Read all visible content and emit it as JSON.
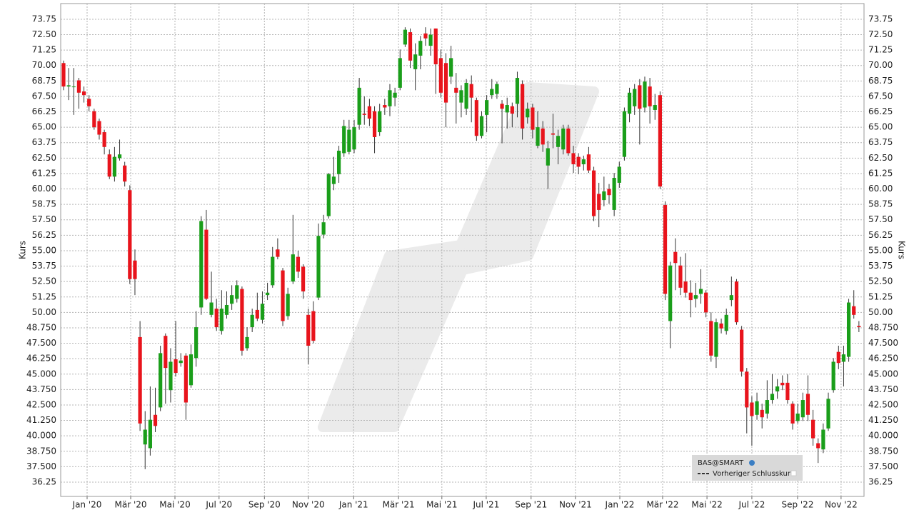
{
  "chart_data": {
    "type": "candlestick",
    "ylabel": "Kurs",
    "up_color": "#1a9e1a",
    "down_color": "#e8141c",
    "wick_color": "#333333",
    "grid": true,
    "ylim": [
      35.09,
      75.02
    ],
    "yticks": [
      36.25,
      {
        "value": 37.5,
        "label": "37.500"
      },
      {
        "value": 38.75,
        "label": "38.750"
      },
      {
        "value": 40,
        "label": "40.000"
      },
      {
        "value": 41.25,
        "label": "41.250"
      },
      {
        "value": 42.5,
        "label": "42.500"
      },
      {
        "value": 43.75,
        "label": "43.750"
      },
      {
        "value": 45,
        "label": "45.000"
      },
      {
        "value": 46.25,
        "label": "46.250"
      },
      {
        "value": 47.5,
        "label": "47.500"
      },
      {
        "value": 48.75,
        "label": "48.750"
      },
      {
        "value": 50,
        "label": "50.00"
      },
      51.25,
      {
        "value": 52.5,
        "label": "52.50"
      },
      53.75,
      {
        "value": 55,
        "label": "55.00"
      },
      56.25,
      {
        "value": 57.5,
        "label": "57.50"
      },
      58.75,
      {
        "value": 60,
        "label": "60.00"
      },
      61.25,
      {
        "value": 62.5,
        "label": "62.50"
      },
      63.75,
      {
        "value": 65,
        "label": "65.00"
      },
      66.25,
      {
        "value": 67.5,
        "label": "67.50"
      },
      68.75,
      {
        "value": 70,
        "label": "70.00"
      },
      71.25,
      {
        "value": 72.5,
        "label": "72.50"
      },
      73.75
    ],
    "xlim": [
      -0.56,
      157
    ],
    "xticks": [
      {
        "value": 4.62,
        "label": "Jan '20"
      },
      {
        "value": 13.17,
        "label": "Mär '20"
      },
      {
        "value": 21.85,
        "label": "Mai '20"
      },
      {
        "value": 30.5,
        "label": "Jul '20"
      },
      {
        "value": 39.4,
        "label": "Sep '20"
      },
      {
        "value": 48.0,
        "label": "Nov '20"
      },
      {
        "value": 56.9,
        "label": "Jan '21"
      },
      {
        "value": 65.7,
        "label": "Mär '21"
      },
      {
        "value": 74.2,
        "label": "Mai '21"
      },
      {
        "value": 82.9,
        "label": "Jul '21"
      },
      {
        "value": 91.7,
        "label": "Sep '21"
      },
      {
        "value": 100.4,
        "label": "Nov '21"
      },
      {
        "value": 109.1,
        "label": "Jan '22"
      },
      {
        "value": 117.5,
        "label": "Mär '22"
      },
      {
        "value": 126.2,
        "label": "Mai '22"
      },
      {
        "value": 135.0,
        "label": "Jul '22"
      },
      {
        "value": 143.97,
        "label": "Sep '22"
      },
      {
        "value": 152.5,
        "label": "Nov '22"
      }
    ],
    "series": [
      {
        "name": "BAS@SMART",
        "open": [
          70.2,
          68.3,
          68.3,
          68.8,
          67.9,
          67.3,
          66.3,
          65.5,
          64.6,
          62.8,
          61.0,
          62.5,
          61.9,
          59.9,
          54.2,
          48.0,
          39.3,
          39.0,
          41.7,
          42.3,
          48.1,
          43.7,
          46.2,
          45.9,
          46.5,
          44.1,
          46.3,
          50.4,
          56.7,
          49.8,
          50.3,
          48.5,
          49.8,
          50.7,
          51.1,
          51.9,
          47.1,
          48.8,
          50.2,
          49.4,
          51.4,
          52.2,
          55.1,
          53.4,
          49.7,
          52.5,
          54.5,
          53.7,
          49.8,
          50.1,
          51.2,
          56.3,
          57.8,
          60.4,
          61.2,
          62.9,
          63.0,
          63.2,
          65.2,
          66.1,
          66.7,
          66.3,
          64.6,
          66.8,
          66.7,
          67.4,
          68.2,
          71.7,
          72.7,
          69.7,
          70.8,
          72.6,
          71.6,
          73.0,
          70.6,
          70.2,
          69.1,
          68.2,
          67.0,
          66.5,
          68.5,
          67.2,
          64.3,
          66.0,
          67.6,
          67.7,
          66.9,
          66.2,
          66.7,
          66.9,
          68.5,
          65.8,
          66.6,
          63.5,
          64.9,
          61.9,
          64.5,
          63.4,
          63.2,
          64.9,
          62.9,
          62.6,
          62.0,
          62.8,
          61.5,
          59.6,
          59.1,
          60.0,
          58.3,
          60.5,
          62.6,
          66.1,
          66.7,
          68.4,
          66.6,
          68.3,
          66.4,
          67.6,
          58.7,
          49.3,
          54.9,
          53.8,
          52.5,
          51.6,
          51.1,
          51.5,
          51.6,
          49.3,
          46.4,
          49.1,
          48.5,
          51.0,
          52.5,
          48.6,
          45.2,
          42.7,
          41.7,
          42.1,
          41.8,
          42.9,
          43.6,
          44.3,
          44.3,
          42.6,
          41.2,
          41.5,
          43.4,
          41.3,
          39.4,
          38.9,
          40.6,
          43.7,
          46.8,
          46.0,
          46.4,
          50.5,
          48.9
        ],
        "high": [
          70.4,
          69.8,
          69.8,
          69.0,
          68.3,
          67.6,
          66.5,
          65.7,
          64.8,
          63.2,
          63.4,
          64.0,
          62.2,
          60.3,
          55.1,
          49.3,
          42.0,
          44.0,
          43.9,
          47.3,
          48.3,
          47.1,
          49.3,
          46.7,
          46.7,
          47.4,
          50.1,
          57.8,
          58.3,
          53.3,
          51.1,
          51.8,
          51.7,
          52.2,
          52.6,
          52.1,
          48.8,
          50.3,
          51.6,
          51.7,
          52.4,
          55.3,
          56.0,
          53.6,
          52.0,
          57.9,
          55.0,
          53.9,
          50.3,
          50.9,
          57.2,
          57.9,
          61.3,
          62.6,
          63.5,
          65.6,
          65.6,
          65.6,
          69.0,
          67.5,
          67.3,
          66.7,
          66.9,
          67.3,
          68.5,
          68.2,
          71.3,
          73.1,
          73.0,
          71.8,
          72.4,
          73.1,
          73.0,
          73.0,
          71.3,
          71.0,
          71.6,
          69.4,
          68.4,
          68.9,
          69.2,
          67.4,
          66.3,
          67.6,
          68.9,
          68.7,
          67.2,
          67.4,
          67.0,
          69.5,
          68.8,
          67.0,
          66.9,
          66.3,
          65.5,
          63.9,
          66.1,
          64.8,
          65.2,
          65.2,
          63.5,
          62.9,
          62.7,
          63.4,
          61.8,
          60.5,
          61.0,
          60.4,
          61.3,
          62.2,
          66.6,
          68.2,
          68.5,
          68.9,
          69.1,
          69.0,
          67.7,
          67.9,
          59.0,
          54.1,
          56.0,
          54.5,
          54.8,
          52.6,
          52.4,
          53.5,
          51.8,
          50.0,
          49.5,
          49.5,
          50.3,
          52.9,
          52.7,
          48.9,
          45.5,
          43.2,
          43.5,
          42.6,
          44.5,
          45.0,
          44.6,
          44.9,
          45.0,
          42.8,
          42.6,
          43.5,
          44.9,
          42.1,
          39.8,
          41.0,
          43.5,
          46.3,
          47.3,
          47.3,
          51.1,
          51.8,
          49.3
        ],
        "low": [
          68.0,
          67.2,
          66.0,
          66.5,
          67.0,
          66.3,
          64.8,
          64.0,
          62.8,
          60.8,
          60.6,
          62.3,
          60.2,
          52.3,
          51.4,
          40.4,
          37.3,
          38.4,
          40.3,
          42.0,
          42.6,
          42.7,
          44.8,
          45.6,
          41.3,
          43.9,
          45.6,
          49.8,
          51.0,
          49.6,
          48.5,
          48.2,
          49.5,
          50.2,
          50.8,
          46.5,
          46.9,
          48.4,
          49.3,
          49.1,
          51.0,
          52.0,
          54.3,
          48.9,
          49.4,
          52.3,
          52.8,
          51.1,
          45.8,
          47.5,
          51.0,
          56.0,
          57.6,
          59.9,
          60.5,
          62.6,
          62.8,
          62.9,
          64.8,
          65.2,
          65.1,
          62.9,
          64.3,
          66.0,
          65.9,
          66.7,
          68.0,
          71.5,
          69.8,
          68.0,
          69.7,
          71.6,
          70.8,
          67.7,
          67.4,
          65.0,
          68.5,
          65.3,
          65.8,
          66.0,
          65.4,
          63.9,
          64.1,
          64.6,
          67.3,
          67.3,
          63.7,
          64.9,
          65.0,
          65.8,
          64.0,
          65.3,
          64.1,
          63.3,
          63.0,
          60.0,
          63.3,
          62.0,
          62.8,
          62.7,
          61.3,
          61.2,
          61.5,
          61.3,
          57.4,
          56.9,
          58.6,
          58.8,
          57.8,
          60.1,
          62.3,
          65.4,
          66.0,
          63.6,
          66.2,
          65.3,
          65.6,
          60.0,
          51.0,
          47.1,
          51.8,
          51.4,
          51.2,
          49.6,
          50.4,
          50.7,
          49.6,
          46.0,
          45.5,
          48.3,
          48.2,
          50.5,
          49.0,
          44.8,
          40.2,
          39.2,
          41.3,
          40.6,
          41.4,
          42.6,
          43.0,
          43.7,
          42.6,
          40.5,
          41.0,
          41.2,
          41.2,
          39.2,
          37.8,
          38.6,
          40.4,
          43.5,
          45.4,
          44.0,
          46.0,
          49.5,
          48.4
        ],
        "close": [
          68.3,
          68.4,
          68.3,
          67.8,
          67.6,
          66.7,
          65.0,
          64.4,
          63.4,
          61.0,
          62.6,
          62.8,
          60.6,
          52.7,
          52.7,
          41.0,
          40.5,
          41.3,
          40.8,
          46.7,
          45.5,
          46.0,
          45.1,
          46.1,
          42.7,
          46.6,
          48.8,
          57.4,
          51.1,
          50.8,
          48.8,
          50.3,
          50.6,
          51.4,
          52.2,
          46.9,
          48.0,
          49.8,
          49.5,
          50.7,
          51.6,
          54.5,
          54.5,
          49.3,
          51.5,
          54.7,
          53.3,
          51.7,
          47.3,
          47.7,
          56.2,
          57.3,
          61.2,
          61.0,
          63.1,
          65.1,
          64.8,
          65.0,
          68.2,
          66.0,
          65.7,
          64.2,
          66.3,
          66.6,
          68.0,
          67.8,
          70.6,
          72.9,
          70.4,
          70.9,
          72.0,
          72.2,
          72.5,
          70.1,
          67.8,
          67.0,
          70.6,
          67.8,
          68.0,
          68.6,
          67.4,
          64.3,
          65.9,
          67.2,
          68.1,
          68.5,
          66.5,
          66.8,
          66.1,
          69.0,
          64.9,
          66.5,
          64.8,
          65.0,
          63.6,
          63.3,
          64.4,
          64.3,
          64.9,
          62.9,
          62.0,
          61.8,
          62.4,
          61.5,
          57.8,
          58.3,
          59.8,
          59.5,
          60.9,
          61.8,
          66.3,
          67.8,
          68.1,
          66.5,
          68.7,
          66.7,
          66.8,
          60.2,
          51.5,
          53.8,
          54.0,
          52.0,
          51.6,
          51.0,
          51.4,
          51.9,
          50.0,
          46.5,
          49.2,
          48.7,
          49.8,
          51.4,
          49.2,
          45.2,
          42.3,
          41.6,
          42.8,
          41.5,
          42.9,
          43.4,
          44.0,
          44.1,
          42.9,
          41.0,
          41.8,
          42.9,
          41.7,
          39.8,
          39.0,
          40.5,
          43.0,
          46.0,
          45.9,
          46.6,
          50.8,
          49.8,
          48.8
        ]
      },
      {
        "name": "Vorheriger Schlusskurs",
        "color": "#333333"
      }
    ]
  }
}
